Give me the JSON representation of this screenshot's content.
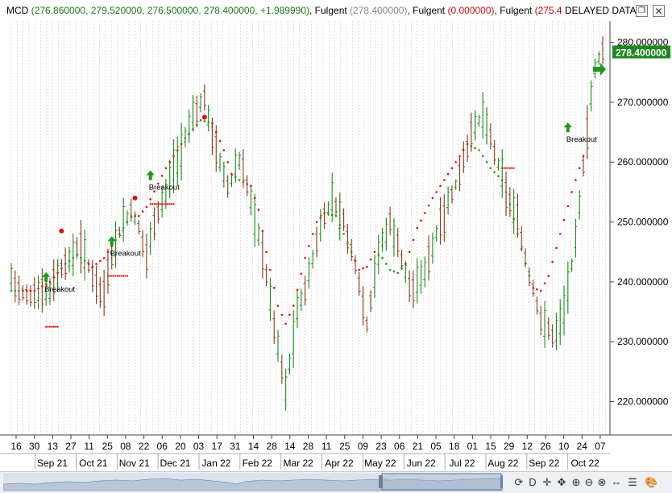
{
  "header": {
    "symbol": "MCD",
    "ohlc": "(276.860000, 279.520000, 276.500000, 278.400000, +1.989990)",
    "ind1_name": "Fulgent",
    "ind1_value": "(278.400000)",
    "ind2_name": "Fulgent",
    "ind2_value": "(0.000000)",
    "ind3_name": "Fulgent",
    "ind3_value": "(275.4",
    "delayed": "DELAYED DATA",
    "restore_icon": "restore-icon",
    "close_icon": "close-icon"
  },
  "colors": {
    "up": "#1a8a1a",
    "down": "#8b3a1a",
    "stop_green": "#1a9a1a",
    "stop_red": "#e01010",
    "price_badge": "#1e8a1e",
    "ohlc_text": "#1a7a1a",
    "ind2_text": "#d01010",
    "ind3_text": "#c00000"
  },
  "chart_data": {
    "type": "candlestick",
    "y_ticks": [
      "280.000000",
      "270.000000",
      "260.000000",
      "250.000000",
      "240.000000",
      "230.000000",
      "220.000000"
    ],
    "y_tick_values": [
      280,
      270,
      260,
      250,
      240,
      230,
      220
    ],
    "ylim": [
      215.5,
      282.5
    ],
    "last_price": "278.400000",
    "x_day_labels": [
      "16",
      "30",
      "13",
      "27",
      "11",
      "25",
      "08",
      "22",
      "06",
      "20",
      "03",
      "17",
      "31",
      "14",
      "28",
      "14",
      "28",
      "11",
      "25",
      "09",
      "23",
      "06",
      "21",
      "05",
      "18",
      "01",
      "15",
      "29",
      "12",
      "26",
      "10",
      "24",
      "07"
    ],
    "x_month_labels": [
      "Sep 21",
      "Oct 21",
      "Nov 21",
      "Dec 21",
      "Jan 22",
      "Feb 22",
      "Mar 22",
      "Apr 22",
      "May 22",
      "Jun 22",
      "Jul 22",
      "Aug 22",
      "Sep 22",
      "Oct 22"
    ],
    "price_path": [
      [
        0,
        241
      ],
      [
        3,
        238
      ],
      [
        6,
        237.5
      ],
      [
        10,
        239
      ],
      [
        14,
        243
      ],
      [
        18,
        246
      ],
      [
        21,
        241
      ],
      [
        24,
        238
      ],
      [
        27,
        247
      ],
      [
        31,
        252
      ],
      [
        33,
        249
      ],
      [
        35,
        245
      ],
      [
        38,
        252
      ],
      [
        41,
        257
      ],
      [
        44,
        262
      ],
      [
        47,
        268
      ],
      [
        50,
        270.5
      ],
      [
        53,
        262
      ],
      [
        56,
        256
      ],
      [
        59,
        260
      ],
      [
        62,
        254
      ],
      [
        65,
        245
      ],
      [
        68,
        233
      ],
      [
        71,
        222
      ],
      [
        74,
        235
      ],
      [
        77,
        241
      ],
      [
        80,
        249
      ],
      [
        83,
        254
      ],
      [
        86,
        250
      ],
      [
        89,
        243
      ],
      [
        92,
        233
      ],
      [
        95,
        245
      ],
      [
        98,
        250
      ],
      [
        101,
        244
      ],
      [
        104,
        238
      ],
      [
        107,
        242
      ],
      [
        110,
        248
      ],
      [
        113,
        253
      ],
      [
        116,
        258
      ],
      [
        119,
        265
      ],
      [
        122,
        268
      ],
      [
        125,
        262
      ],
      [
        128,
        255
      ],
      [
        131,
        250
      ],
      [
        134,
        241
      ],
      [
        137,
        234
      ],
      [
        140,
        231
      ],
      [
        143,
        235
      ],
      [
        146,
        247
      ],
      [
        149,
        265
      ],
      [
        151,
        276
      ],
      [
        153,
        279
      ]
    ],
    "stop_path": [
      [
        0,
        238.5
      ],
      [
        6,
        238.5
      ],
      [
        10,
        240
      ],
      [
        14,
        243
      ],
      [
        17,
        244.5
      ],
      [
        19,
        243.5
      ],
      [
        21,
        242.5
      ],
      [
        24,
        244
      ],
      [
        28,
        248
      ],
      [
        31,
        251
      ],
      [
        33,
        251
      ],
      [
        35,
        252.5
      ],
      [
        40,
        259
      ],
      [
        45,
        264
      ],
      [
        49,
        267
      ],
      [
        52,
        266.5
      ],
      [
        55,
        262
      ],
      [
        57,
        258
      ],
      [
        59,
        257
      ],
      [
        62,
        256
      ],
      [
        64,
        252
      ],
      [
        66,
        245
      ],
      [
        69,
        236
      ],
      [
        71,
        233
      ],
      [
        73,
        236
      ],
      [
        76,
        244
      ],
      [
        79,
        250
      ],
      [
        81,
        251.5
      ],
      [
        84,
        251
      ],
      [
        86,
        248
      ],
      [
        88,
        245
      ],
      [
        90,
        242
      ],
      [
        92,
        242.5
      ],
      [
        94,
        245
      ],
      [
        96,
        244
      ],
      [
        98,
        242
      ],
      [
        100,
        241.5
      ],
      [
        102,
        243
      ],
      [
        105,
        249
      ],
      [
        109,
        254
      ],
      [
        113,
        258
      ],
      [
        116,
        261
      ],
      [
        118,
        263
      ],
      [
        121,
        262
      ],
      [
        124,
        259
      ],
      [
        127,
        257
      ],
      [
        129,
        253
      ],
      [
        131,
        248
      ],
      [
        133,
        243
      ],
      [
        135,
        239
      ],
      [
        137,
        238.5
      ],
      [
        139,
        241
      ],
      [
        142,
        248
      ],
      [
        145,
        255
      ],
      [
        148,
        261
      ]
    ],
    "red_dashes": [
      {
        "x0": 9,
        "x1": 12,
        "y": 232.5
      },
      {
        "x0": 25,
        "x1": 30,
        "y": 241
      },
      {
        "x0": 36,
        "x1": 42,
        "y": 253
      },
      {
        "x0": 127,
        "x1": 130,
        "y": 259
      }
    ],
    "high_dots": [
      {
        "x": 13,
        "y": 248.5
      },
      {
        "x": 32,
        "y": 254
      },
      {
        "x": 50,
        "y": 267.5
      }
    ],
    "signals": [
      {
        "x": 9,
        "y": 240,
        "label": "Breakout"
      },
      {
        "x": 26,
        "y": 246,
        "label": "Breakout"
      },
      {
        "x": 36,
        "y": 257,
        "label": "Breakout"
      },
      {
        "x": 144,
        "y": 265,
        "label": "Breakout"
      }
    ]
  },
  "toolbar": {
    "period": "D",
    "refresh_icon": "refresh-icon",
    "cursor_icon": "cursor-icon",
    "move_icon": "move-icon",
    "zoom_in_icon": "zoom-in-icon",
    "zoom_out_icon": "zoom-out-icon",
    "reset_icon": "reset-zoom-icon",
    "range_icon": "range-icon",
    "list_icon": "list-icon",
    "palette_icon": "palette-icon"
  }
}
